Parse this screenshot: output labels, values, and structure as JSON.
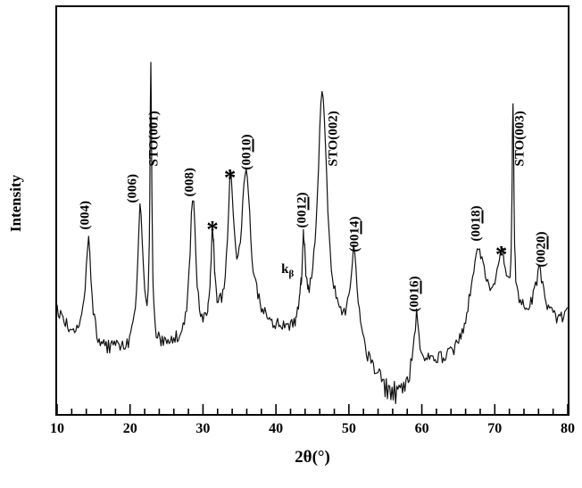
{
  "figure": {
    "background": "#ffffff",
    "line_color": "#111111",
    "axis_color": "#000000"
  },
  "chart_data": {
    "type": "line",
    "title": "",
    "xlabel": "2θ(°)",
    "ylabel": "Intensity",
    "xlim": [
      10,
      80
    ],
    "ylim": [
      0,
      121
    ],
    "grid": false,
    "legend": "none",
    "series_name": "XRD intensity pattern (thin film on SrTiO3 substrate)",
    "x_major_ticks": [
      10,
      20,
      30,
      40,
      50,
      60,
      70,
      80
    ],
    "x_minor_step": 2,
    "noise_amplitude": 2.0,
    "background_points": [
      [
        10,
        30
      ],
      [
        11.5,
        25
      ],
      [
        13,
        22
      ],
      [
        15,
        19
      ],
      [
        16.5,
        18
      ],
      [
        18,
        19
      ],
      [
        19.5,
        18
      ],
      [
        21,
        18
      ],
      [
        22.8,
        19
      ],
      [
        24.5,
        19
      ],
      [
        26.5,
        20
      ],
      [
        28.6,
        20
      ],
      [
        30,
        21
      ],
      [
        31.5,
        23
      ],
      [
        33,
        27
      ],
      [
        34.5,
        27
      ],
      [
        36,
        28
      ],
      [
        37.5,
        27
      ],
      [
        39,
        25
      ],
      [
        40.5,
        24
      ],
      [
        42,
        22
      ],
      [
        43.5,
        21
      ],
      [
        45,
        22
      ],
      [
        46.5,
        23
      ],
      [
        48,
        22
      ],
      [
        49.5,
        21
      ],
      [
        51,
        20
      ],
      [
        52.5,
        14
      ],
      [
        54,
        9
      ],
      [
        55.5,
        6
      ],
      [
        57,
        5
      ],
      [
        58.2,
        8
      ],
      [
        59.3,
        12
      ],
      [
        60.5,
        14
      ],
      [
        62,
        15
      ],
      [
        63.5,
        16
      ],
      [
        65,
        18
      ],
      [
        66.5,
        24
      ],
      [
        68,
        29
      ],
      [
        69.5,
        30
      ],
      [
        71,
        30
      ],
      [
        72.5,
        29
      ],
      [
        74,
        28
      ],
      [
        75.5,
        26
      ],
      [
        77,
        26
      ],
      [
        78.5,
        27
      ],
      [
        80,
        29
      ]
    ],
    "peaks": [
      {
        "label": "(004)",
        "center": 14.3,
        "height": 32,
        "width": 0.5
      },
      {
        "label": "(006)",
        "center": 21.4,
        "height": 43,
        "width": 0.45
      },
      {
        "label": "STO(001)",
        "center": 22.85,
        "height": 82,
        "width": 0.15
      },
      {
        "label": "(008)",
        "center": 28.6,
        "height": 43,
        "width": 0.5
      },
      {
        "label": "*",
        "center": 31.3,
        "height": 29,
        "width": 0.3
      },
      {
        "label": "*",
        "center": 33.8,
        "height": 40,
        "width": 0.45
      },
      {
        "label": "(0010)",
        "center": 35.9,
        "height": 44,
        "width": 0.7
      },
      {
        "label": "kβ",
        "center": 43.2,
        "height": 5,
        "width": 0.25
      },
      {
        "label": "(0012)",
        "center": 43.8,
        "height": 25,
        "width": 0.28
      },
      {
        "label": "STO(002)",
        "center": 46.35,
        "height": 72,
        "width": 0.8
      },
      {
        "label": "(0014)",
        "center": 50.7,
        "height": 26,
        "width": 0.6
      },
      {
        "label": "(0016)",
        "center": 59.3,
        "height": 17,
        "width": 0.4
      },
      {
        "label": "(0018)",
        "center": 67.6,
        "height": 21,
        "width": 1.0
      },
      {
        "label": "*",
        "center": 71.0,
        "height": 16,
        "width": 0.7
      },
      {
        "label": "STO(003)",
        "center": 72.5,
        "height": 61,
        "width": 0.15
      },
      {
        "label": "(0020)",
        "center": 76.1,
        "height": 16,
        "width": 0.8
      }
    ],
    "annotations": [
      {
        "name": "peak-label-004",
        "kind": "vert",
        "x": 13.9,
        "v": 55,
        "parts": [
          {
            "t": "(004)"
          }
        ]
      },
      {
        "name": "peak-label-006",
        "kind": "vert",
        "x": 20.4,
        "v": 63,
        "parts": [
          {
            "t": "(006)"
          }
        ]
      },
      {
        "name": "peak-label-sto001",
        "kind": "vert",
        "x": 23.4,
        "v": 74,
        "parts": [
          {
            "t": "STO(001)"
          }
        ]
      },
      {
        "name": "peak-label-008",
        "kind": "vert",
        "x": 28.2,
        "v": 65,
        "parts": [
          {
            "t": "(008)"
          }
        ]
      },
      {
        "name": "impurity-star-1",
        "kind": "star",
        "x": 31.3,
        "v": 51,
        "parts": [
          {
            "t": "*"
          }
        ]
      },
      {
        "name": "impurity-star-2",
        "kind": "star",
        "x": 33.7,
        "v": 66.5,
        "parts": [
          {
            "t": "*"
          }
        ]
      },
      {
        "name": "peak-label-0010",
        "kind": "vert",
        "x": 36.1,
        "v": 73,
        "parts": [
          {
            "t": "(00"
          },
          {
            "t": "10",
            "u": true
          },
          {
            "t": ")"
          }
        ]
      },
      {
        "name": "kbeta-label",
        "kind": "horiz",
        "x": 41.6,
        "v": 40,
        "parts": [
          {
            "t": "k"
          },
          {
            "t": "β",
            "sub": true
          }
        ]
      },
      {
        "name": "peak-label-0012",
        "kind": "vert",
        "x": 43.6,
        "v": 55.5,
        "parts": [
          {
            "t": "(00"
          },
          {
            "t": "12",
            "u": true
          },
          {
            "t": ")"
          }
        ]
      },
      {
        "name": "peak-label-sto002",
        "kind": "vert",
        "x": 47.9,
        "v": 74,
        "parts": [
          {
            "t": "STO(002)"
          }
        ]
      },
      {
        "name": "peak-label-0014",
        "kind": "vert",
        "x": 50.9,
        "v": 48.5,
        "parts": [
          {
            "t": "(00"
          },
          {
            "t": "14",
            "u": true
          },
          {
            "t": ")"
          }
        ]
      },
      {
        "name": "peak-label-0016",
        "kind": "vert",
        "x": 59.1,
        "v": 30.5,
        "parts": [
          {
            "t": "(00"
          },
          {
            "t": "16",
            "u": true
          },
          {
            "t": ")"
          }
        ]
      },
      {
        "name": "peak-label-0018",
        "kind": "vert",
        "x": 67.5,
        "v": 51.5,
        "parts": [
          {
            "t": "(00"
          },
          {
            "t": "18",
            "u": true
          },
          {
            "t": ")"
          }
        ]
      },
      {
        "name": "impurity-star-3",
        "kind": "star",
        "x": 70.9,
        "v": 43.5,
        "parts": [
          {
            "t": "*"
          }
        ]
      },
      {
        "name": "peak-label-sto003",
        "kind": "vert",
        "x": 73.5,
        "v": 74,
        "parts": [
          {
            "t": "STO(003)"
          }
        ]
      },
      {
        "name": "peak-label-0020",
        "kind": "vert",
        "x": 76.5,
        "v": 44,
        "parts": [
          {
            "t": "(00"
          },
          {
            "t": "20",
            "u": true
          },
          {
            "t": ")"
          }
        ]
      }
    ]
  }
}
